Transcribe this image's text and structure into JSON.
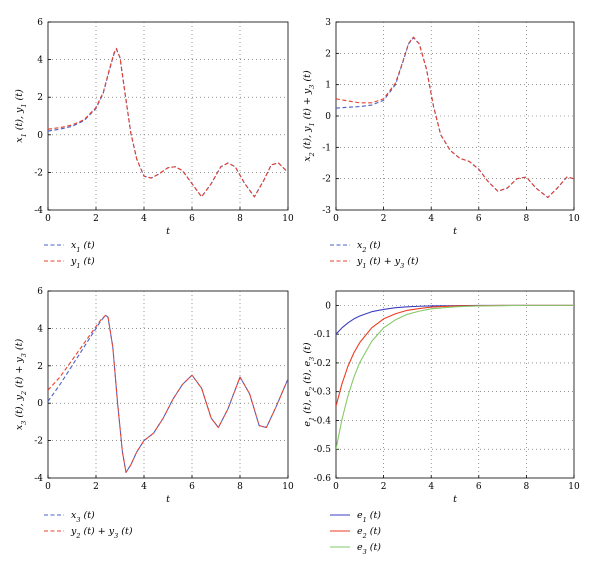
{
  "chart_data": [
    {
      "type": "line",
      "panel": "a",
      "xlabel": "t",
      "ylabel": "x₁ (t), y₁ (t)",
      "xlim": [
        0,
        10
      ],
      "ylim": [
        -4,
        6
      ],
      "xticks": [
        0,
        2,
        4,
        6,
        8,
        10
      ],
      "yticks": [
        -4,
        -2,
        0,
        2,
        4,
        6
      ],
      "grid": true,
      "legend_position": "below",
      "series": [
        {
          "name": "x₁ (t)",
          "color": "#4a5fc9",
          "dash": "dashed",
          "x": [
            0,
            0.5,
            1,
            1.5,
            2,
            2.3,
            2.55,
            2.75,
            2.85,
            3.0,
            3.2,
            3.45,
            3.7,
            4.0,
            4.3,
            4.6,
            5.0,
            5.3,
            5.6,
            6.0,
            6.4,
            6.8,
            7.2,
            7.5,
            7.8,
            8.2,
            8.6,
            9.0,
            9.3,
            9.6,
            10
          ],
          "y": [
            0.2,
            0.3,
            0.45,
            0.75,
            1.4,
            2.2,
            3.4,
            4.3,
            4.55,
            4.1,
            2.3,
            0.1,
            -1.3,
            -2.2,
            -2.3,
            -2.1,
            -1.75,
            -1.7,
            -1.9,
            -2.6,
            -3.3,
            -2.6,
            -1.7,
            -1.5,
            -1.7,
            -2.6,
            -3.3,
            -2.4,
            -1.6,
            -1.5,
            -2.0
          ]
        },
        {
          "name": "y₁ (t)",
          "color": "#e8402a",
          "dash": "dashed",
          "x": [
            0,
            0.5,
            1,
            1.5,
            2,
            2.3,
            2.55,
            2.75,
            2.85,
            3.0,
            3.2,
            3.45,
            3.7,
            4.0,
            4.3,
            4.6,
            5.0,
            5.3,
            5.6,
            6.0,
            6.4,
            6.8,
            7.2,
            7.5,
            7.8,
            8.2,
            8.6,
            9.0,
            9.3,
            9.6,
            10
          ],
          "y": [
            0.3,
            0.38,
            0.52,
            0.8,
            1.45,
            2.25,
            3.45,
            4.35,
            4.6,
            4.1,
            2.3,
            0.1,
            -1.3,
            -2.2,
            -2.3,
            -2.1,
            -1.75,
            -1.7,
            -1.9,
            -2.6,
            -3.3,
            -2.6,
            -1.7,
            -1.5,
            -1.7,
            -2.6,
            -3.3,
            -2.4,
            -1.6,
            -1.5,
            -2.0
          ]
        }
      ]
    },
    {
      "type": "line",
      "panel": "b",
      "xlabel": "t",
      "ylabel": "x₂ (t), y₁ (t) + y₃ (t)",
      "xlim": [
        0,
        10
      ],
      "ylim": [
        -3,
        3
      ],
      "xticks": [
        0,
        2,
        4,
        6,
        8,
        10
      ],
      "yticks": [
        -3,
        -2,
        -1,
        0,
        1,
        2,
        3
      ],
      "grid": true,
      "legend_position": "below",
      "series": [
        {
          "name": "x₂ (t)",
          "color": "#4a5fc9",
          "dash": "dashed",
          "x": [
            0,
            0.5,
            1,
            1.5,
            2,
            2.5,
            2.8,
            3.05,
            3.25,
            3.5,
            3.8,
            4.1,
            4.4,
            4.8,
            5.2,
            5.6,
            6.0,
            6.4,
            6.8,
            7.2,
            7.6,
            8.0,
            8.4,
            8.9,
            9.3,
            9.7,
            10
          ],
          "y": [
            0.25,
            0.28,
            0.3,
            0.35,
            0.5,
            1.0,
            1.7,
            2.3,
            2.5,
            2.3,
            1.5,
            0.3,
            -0.6,
            -1.1,
            -1.35,
            -1.45,
            -1.7,
            -2.1,
            -2.4,
            -2.3,
            -2.0,
            -1.95,
            -2.3,
            -2.6,
            -2.3,
            -1.95,
            -2.0
          ]
        },
        {
          "name": "y₁ (t) + y₃ (t)",
          "color": "#e8402a",
          "dash": "dashed",
          "x": [
            0,
            0.5,
            1,
            1.5,
            2,
            2.5,
            2.8,
            3.05,
            3.25,
            3.5,
            3.8,
            4.1,
            4.4,
            4.8,
            5.2,
            5.6,
            6.0,
            6.4,
            6.8,
            7.2,
            7.6,
            8.0,
            8.4,
            8.9,
            9.3,
            9.7,
            10
          ],
          "y": [
            0.55,
            0.48,
            0.42,
            0.42,
            0.55,
            1.05,
            1.72,
            2.32,
            2.52,
            2.3,
            1.5,
            0.3,
            -0.6,
            -1.1,
            -1.35,
            -1.45,
            -1.7,
            -2.1,
            -2.4,
            -2.3,
            -2.0,
            -1.95,
            -2.3,
            -2.6,
            -2.3,
            -1.95,
            -2.0
          ]
        }
      ]
    },
    {
      "type": "line",
      "panel": "c",
      "xlabel": "t",
      "ylabel": "x₃ (t), y₂ (t) + y₃ (t)",
      "xlim": [
        0,
        10
      ],
      "ylim": [
        -4,
        6
      ],
      "xticks": [
        0,
        2,
        4,
        6,
        8,
        10
      ],
      "yticks": [
        -4,
        -2,
        0,
        2,
        4,
        6
      ],
      "grid": true,
      "legend_position": "below",
      "series": [
        {
          "name": "x₃ (t)",
          "color": "#4a5fc9",
          "dash": "dashed",
          "x": [
            0,
            0.5,
            1,
            1.5,
            2,
            2.2,
            2.4,
            2.5,
            2.7,
            2.9,
            3.1,
            3.25,
            3.45,
            3.7,
            4.0,
            4.4,
            4.8,
            5.2,
            5.6,
            6.0,
            6.4,
            6.8,
            7.1,
            7.5,
            8.0,
            8.4,
            8.8,
            9.1,
            9.5,
            10
          ],
          "y": [
            0.1,
            1.0,
            2.0,
            3.0,
            4.0,
            4.4,
            4.7,
            4.6,
            3.0,
            0.0,
            -2.6,
            -3.7,
            -3.3,
            -2.6,
            -2.0,
            -1.6,
            -0.8,
            0.2,
            1.0,
            1.5,
            0.8,
            -0.8,
            -1.3,
            -0.3,
            1.4,
            0.5,
            -1.2,
            -1.3,
            -0.2,
            1.3
          ]
        },
        {
          "name": "y₂ (t) + y₃ (t)",
          "color": "#e8402a",
          "dash": "dashed",
          "x": [
            0,
            0.5,
            1,
            1.5,
            2,
            2.2,
            2.4,
            2.5,
            2.7,
            2.9,
            3.1,
            3.25,
            3.45,
            3.7,
            4.0,
            4.4,
            4.8,
            5.2,
            5.6,
            6.0,
            6.4,
            6.8,
            7.1,
            7.5,
            8.0,
            8.4,
            8.8,
            9.1,
            9.5,
            10
          ],
          "y": [
            0.7,
            1.4,
            2.3,
            3.2,
            4.1,
            4.45,
            4.7,
            4.6,
            3.0,
            0.0,
            -2.6,
            -3.7,
            -3.3,
            -2.6,
            -2.0,
            -1.6,
            -0.8,
            0.2,
            1.0,
            1.5,
            0.8,
            -0.8,
            -1.3,
            -0.3,
            1.4,
            0.5,
            -1.2,
            -1.3,
            -0.2,
            1.3
          ]
        }
      ]
    },
    {
      "type": "line",
      "panel": "d",
      "xlabel": "t",
      "ylabel": "e₁ (t), e₂ (t), e₃ (t)",
      "xlim": [
        0,
        10
      ],
      "ylim": [
        -0.6,
        0.05
      ],
      "xticks": [
        0,
        2,
        4,
        6,
        8,
        10
      ],
      "yticks": [
        -0.6,
        -0.5,
        -0.4,
        -0.3,
        -0.2,
        -0.1,
        0
      ],
      "grid": true,
      "legend_position": "below",
      "series": [
        {
          "name": "e₁ (t)",
          "color": "#3a3fbf",
          "dash": "solid",
          "x": [
            0,
            0.25,
            0.5,
            0.75,
            1,
            1.5,
            2,
            2.5,
            3,
            3.5,
            4,
            5,
            6,
            7,
            8,
            9,
            10
          ],
          "y": [
            -0.1,
            -0.078,
            -0.061,
            -0.047,
            -0.037,
            -0.022,
            -0.014,
            -0.008,
            -0.005,
            -0.003,
            -0.002,
            -0.001,
            0,
            0,
            0,
            0,
            0
          ]
        },
        {
          "name": "e₂ (t)",
          "color": "#ee3b22",
          "dash": "solid",
          "x": [
            0,
            0.25,
            0.5,
            0.75,
            1,
            1.5,
            2,
            2.5,
            3,
            3.5,
            4,
            5,
            6,
            7,
            8,
            9,
            10
          ],
          "y": [
            -0.35,
            -0.273,
            -0.212,
            -0.165,
            -0.129,
            -0.078,
            -0.047,
            -0.029,
            -0.017,
            -0.011,
            -0.006,
            -0.002,
            -0.001,
            0,
            0,
            0,
            0
          ]
        },
        {
          "name": "e₃ (t)",
          "color": "#86c96a",
          "dash": "solid",
          "x": [
            0,
            0.25,
            0.5,
            0.75,
            1,
            1.5,
            2,
            2.5,
            3,
            3.5,
            4,
            5,
            6,
            7,
            8,
            9,
            10
          ],
          "y": [
            -0.5,
            -0.397,
            -0.315,
            -0.25,
            -0.198,
            -0.125,
            -0.078,
            -0.05,
            -0.031,
            -0.02,
            -0.012,
            -0.005,
            -0.002,
            -0.001,
            0,
            0,
            0
          ]
        }
      ]
    }
  ]
}
